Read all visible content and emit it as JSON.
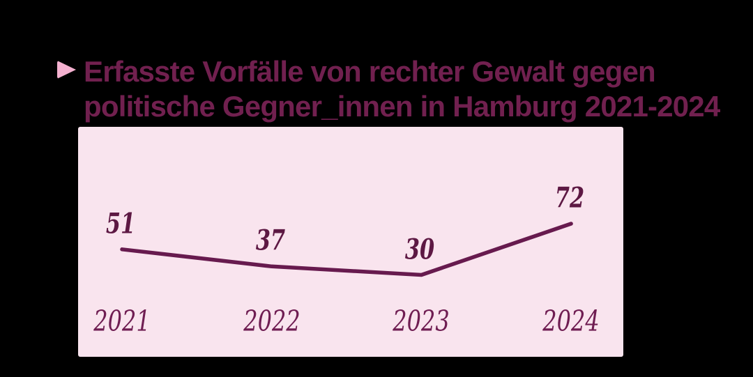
{
  "background_color": "#000000",
  "header": {
    "bullet_icon": "triangle-right-icon",
    "bullet_color": "#f4b1d0",
    "title_line1": "Erfasste Vorfälle von rechter Gewalt gegen",
    "title_line2": "politische Gegner_innen in Hamburg 2021-2024",
    "title_color": "#71204f"
  },
  "chart_data": {
    "type": "line",
    "title": "Erfasste Vorfälle von rechter Gewalt gegen politische Gegner_innen in Hamburg 2021-2024",
    "categories": [
      "2021",
      "2022",
      "2023",
      "2024"
    ],
    "series": [
      {
        "name": "Erfasste Vorfälle",
        "values": [
          51,
          37,
          30,
          72
        ]
      }
    ],
    "data_labels_shown": true,
    "xlabel": "",
    "ylabel": "",
    "grid": false,
    "legend": "none",
    "panel_color": "#f9e4ee",
    "line_color": "#671a4e",
    "value_label_color": "#5d1843",
    "tick_label_color": "#6f1d52"
  }
}
